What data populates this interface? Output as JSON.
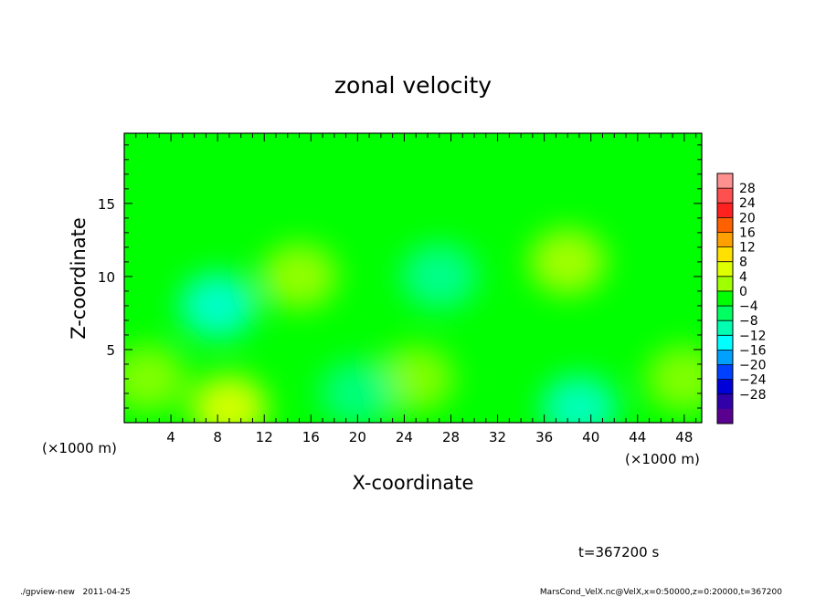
{
  "chart_data": {
    "type": "heatmap",
    "title": "zonal velocity",
    "xlabel": "X-coordinate",
    "ylabel": "Z-coordinate",
    "x_units_left": "(×1000 m)",
    "x_units_right": "(×1000 m)",
    "xlim": [
      0,
      49.5
    ],
    "ylim": [
      0,
      19.8
    ],
    "xticks": [
      4,
      8,
      12,
      16,
      20,
      24,
      28,
      32,
      36,
      40,
      44,
      48
    ],
    "yticks": [
      5,
      10,
      15
    ],
    "colorbar": {
      "labels": [
        "28",
        "24",
        "20",
        "16",
        "12",
        "8",
        "4",
        "0",
        "−4",
        "−8",
        "−12",
        "−16",
        "−20",
        "−24",
        "−28"
      ],
      "colors": [
        "#ff9090",
        "#ff5050",
        "#ff2020",
        "#ff6000",
        "#ffa000",
        "#ffe000",
        "#ddff00",
        "#a0ff00",
        "#00ff00",
        "#00ff60",
        "#00ffb0",
        "#00ffff",
        "#00a0ff",
        "#0040ff",
        "#0000d8",
        "#3000a8",
        "#5a0090"
      ]
    },
    "background_color": "#00ff00",
    "features": [
      {
        "x": 8,
        "z": 8,
        "value": -10,
        "color": "#00ffd0"
      },
      {
        "x": 9,
        "z": 1,
        "value": 8,
        "color": "#ddff00"
      },
      {
        "x": 38,
        "z": 11,
        "value": 6,
        "color": "#aaff00"
      },
      {
        "x": 15,
        "z": 10,
        "value": 4,
        "color": "#99ff00"
      },
      {
        "x": 39,
        "z": 1,
        "value": -9,
        "color": "#00ffc0"
      },
      {
        "x": 27,
        "z": 10,
        "value": -5,
        "color": "#00ff90"
      },
      {
        "x": 2,
        "z": 3,
        "value": 3,
        "color": "#88ff00"
      },
      {
        "x": 25,
        "z": 3,
        "value": 3,
        "color": "#88ff00"
      },
      {
        "x": 20,
        "z": 2,
        "value": -4,
        "color": "#00ff80"
      },
      {
        "x": 48,
        "z": 3,
        "value": 3,
        "color": "#88ff00"
      }
    ]
  },
  "time_label": "t=367200 s",
  "footer_left": "./gpview-new   2011-04-25",
  "footer_right": "MarsCond_VelX.nc@VelX,x=0:50000,z=0:20000,t=367200"
}
